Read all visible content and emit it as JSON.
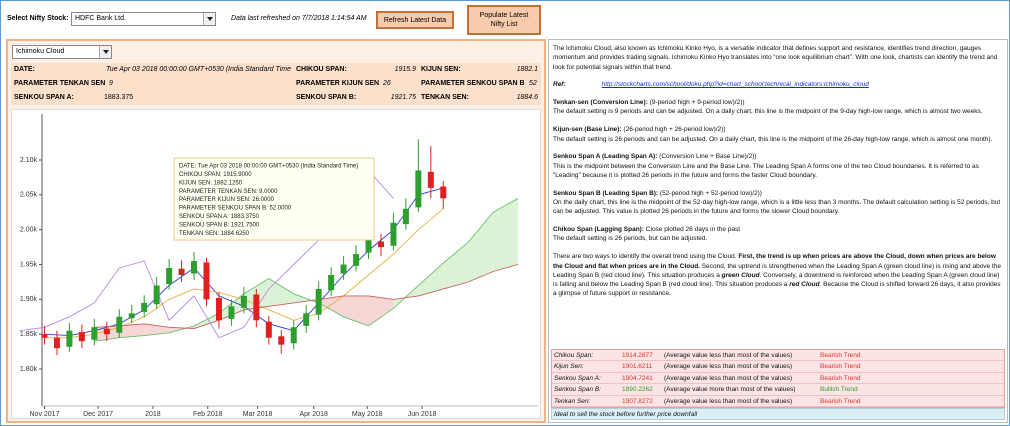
{
  "toolbar": {
    "stock_label": "Select Nifty Stock:",
    "stock": "HDFC Bank Ltd.",
    "refresh_note": "Data last refreshed on 7/7/2018 1:14:54 AM",
    "buttons": [
      "Refresh Latest Data",
      "Populate Latest Nifty List"
    ]
  },
  "indicator": "Ichimoku Cloud",
  "info": [
    [
      {
        "label": "DATE:",
        "value": "Tue Apr 03 2018 00:00:00 GMT+0530 (India Standard Time"
      },
      {
        "label": "CHIKOU SPAN:",
        "value": "1915.9"
      },
      {
        "label": "KIJUN SEN:",
        "value": "1882.1"
      }
    ],
    [
      {
        "label": "PARAMETER TENKAN SEN",
        "value": "9"
      },
      {
        "label": "PARAMETER KIJUN SEN",
        "value": "26"
      },
      {
        "label": "PARAMETER SENKOU SPAN B",
        "value": "52"
      }
    ],
    [
      {
        "label": "SENKOU SPAN A:",
        "value": "1883.375"
      },
      {
        "label": "SENKOU SPAN B:",
        "value": "1921.75"
      },
      {
        "label": "TENKAN SEN:",
        "value": "1884.6"
      }
    ]
  ],
  "chart_data": {
    "type": "candlestick",
    "x": [
      0,
      1,
      2,
      3,
      4,
      5,
      6,
      7,
      8,
      9,
      10,
      11,
      12,
      13,
      14,
      15,
      16,
      17,
      18,
      19,
      20,
      21,
      22,
      23,
      24,
      25,
      26,
      27,
      28,
      29,
      30,
      31,
      32
    ],
    "open": [
      1850,
      1845,
      1832,
      1853,
      1842,
      1858,
      1852,
      1873,
      1882,
      1893,
      1922,
      1944,
      1937,
      1953,
      1902,
      1872,
      1888,
      1907,
      1868,
      1847,
      1837,
      1862,
      1878,
      1913,
      1937,
      1948,
      1967,
      1983,
      1977,
      2008,
      2032,
      2083,
      2062
    ],
    "high": [
      1862,
      1855,
      1866,
      1864,
      1872,
      1868,
      1886,
      1892,
      1906,
      1932,
      1958,
      1956,
      1968,
      1960,
      1910,
      1900,
      1918,
      1915,
      1876,
      1856,
      1870,
      1892,
      1926,
      1946,
      1962,
      1978,
      1998,
      1994,
      2024,
      2045,
      2130,
      2120,
      2070
    ],
    "low": [
      1835,
      1820,
      1825,
      1830,
      1834,
      1840,
      1845,
      1866,
      1874,
      1886,
      1914,
      1925,
      1928,
      1890,
      1858,
      1862,
      1880,
      1860,
      1835,
      1822,
      1828,
      1852,
      1870,
      1905,
      1928,
      1940,
      1958,
      1962,
      1970,
      2000,
      2025,
      2045,
      2030
    ],
    "close": [
      1845,
      1830,
      1855,
      1840,
      1860,
      1850,
      1875,
      1880,
      1895,
      1920,
      1945,
      1935,
      1955,
      1900,
      1870,
      1890,
      1905,
      1870,
      1845,
      1835,
      1860,
      1880,
      1915,
      1935,
      1950,
      1965,
      1985,
      1975,
      2010,
      2030,
      2085,
      2060,
      2045
    ],
    "up_color": "#2e9e2e",
    "down_color": "#e02020",
    "series": [
      {
        "color": "#2a3fc8",
        "x": [
          0,
          2,
          4,
          6,
          8,
          10,
          12,
          14,
          16,
          18,
          20,
          22,
          24,
          26,
          28,
          30,
          32
        ],
        "values": [
          1850,
          1848,
          1855,
          1865,
          1885,
          1920,
          1945,
          1905,
          1890,
          1865,
          1855,
          1895,
          1935,
          1970,
          2000,
          2050,
          2060
        ]
      },
      {
        "color": "#e8b040",
        "x": [
          0,
          2,
          4,
          6,
          8,
          10,
          12,
          14,
          16,
          18,
          20,
          22,
          24,
          26,
          28,
          30,
          32
        ],
        "values": [
          1845,
          1845,
          1850,
          1860,
          1875,
          1900,
          1915,
          1910,
          1900,
          1885,
          1870,
          1880,
          1905,
          1935,
          1965,
          2000,
          2030
        ]
      },
      {
        "color": "#6cbf6c",
        "cloud": true,
        "x": [
          4,
          6,
          8,
          10,
          12,
          14,
          16,
          18,
          20,
          22,
          24,
          26,
          28,
          30,
          32,
          34,
          36,
          38
        ],
        "values": [
          1840,
          1845,
          1848,
          1852,
          1862,
          1880,
          1908,
          1930,
          1908,
          1895,
          1875,
          1862,
          1887,
          1920,
          1952,
          1982,
          2025,
          2045
        ]
      },
      {
        "color": "#c86060",
        "cloud": true,
        "x": [
          4,
          6,
          8,
          10,
          12,
          14,
          16,
          18,
          20,
          22,
          24,
          26,
          28,
          30,
          32,
          34,
          36,
          38
        ],
        "values": [
          1860,
          1862,
          1865,
          1860,
          1858,
          1870,
          1885,
          1890,
          1895,
          1900,
          1905,
          1905,
          1900,
          1905,
          1915,
          1925,
          1940,
          1950
        ]
      },
      {
        "color": "#b58be0",
        "x": [
          -2,
          0,
          2,
          4,
          6,
          8,
          10,
          12,
          14,
          16,
          18,
          20,
          22,
          24,
          26,
          28
        ],
        "values": [
          1855,
          1860,
          1875,
          1895,
          1945,
          1955,
          1870,
          1905,
          1845,
          1860,
          1915,
          1950,
          1985,
          2010,
          2085,
          2045
        ]
      }
    ],
    "cloud_colors": {
      "bullish": "#dcf2d6",
      "bearish": "#f7d6d6"
    },
    "xlim": [
      -0.2,
      39.6
    ],
    "ylim": [
      1747,
      2166
    ],
    "xticks": [
      {
        "value": 0,
        "label": "Nov 2017"
      },
      {
        "value": 4.3,
        "label": "Dec 2017"
      },
      {
        "value": 8.7,
        "label": "2018"
      },
      {
        "value": 13.1,
        "label": "Feb 2018"
      },
      {
        "value": 17.1,
        "label": "Mar 2018"
      },
      {
        "value": 21.6,
        "label": "Apr 2018"
      },
      {
        "value": 25.9,
        "label": "May 2018"
      },
      {
        "value": 30.3,
        "label": "Jun 2018"
      }
    ],
    "yticks": [
      {
        "value": 1800,
        "label": "1.80k"
      },
      {
        "value": 1850,
        "label": "1.85k"
      },
      {
        "value": 1900,
        "label": "1.90k"
      },
      {
        "value": 1950,
        "label": "1.95k"
      },
      {
        "value": 2000,
        "label": "2.00k"
      },
      {
        "value": 2050,
        "label": "2.05k"
      },
      {
        "value": 2100,
        "label": "2.10k"
      }
    ],
    "tooltip": [
      "DATE: Tue Apr 03 2018 00:00:00 GMT+0530 (India Standard Time)",
      "CHIKOU SPAN: 1915.9000",
      "KIJUN SEN: 1882.1250",
      "PARAMETER TENKAN SEN: 9.0000",
      "PARAMETER KIJUN SEN: 26.0000",
      "PARAMETER SENKOU SPAN B: 52.0000",
      "SENKOU SPAN A: 1883.3750",
      "SENKOU SPAN B: 1921.7500",
      "TENKAN SEN: 1884.6250"
    ]
  },
  "description": [
    [
      [
        {
          "t": "The Ichimoku Cloud, also known as Ichimoku Kinko Hyo, is a versatile indicator that defines support and resistance, identifies trend direction, gauges momentum and provides trading signals. Ichimoku Kinko Hyo translates into “one look equilibrium chart”. With one look, chartists can identify the trend and look for potential signals within that trend."
        }
      ]
    ],
    [
      [
        {
          "t": "Ref:",
          "b": true,
          "i": true
        },
        {
          "t": "http://stockcharts.com/school/doku.php?id=chart_school:technical_indicators:ichimoku_cloud",
          "link": true
        }
      ]
    ],
    [
      [
        {
          "t": "Tenkan-sen (Conversion Line):",
          "b": true
        },
        {
          "t": " (9-period high + 9-period low)/2))"
        }
      ],
      [
        {
          "t": "The default setting is 9 periods and can be adjusted. On a daily chart, this line is the midpoint of the 9-day high-low range, which is almost two weeks."
        }
      ]
    ],
    [
      [
        {
          "t": "Kijun-sen (Base Line):",
          "b": true
        },
        {
          "t": " (26-period high + 26-period low)/2))"
        }
      ],
      [
        {
          "t": "The default setting is 26 periods and can be adjusted. On a daily chart, this line is the midpoint of the 26-day high-low range, which is almost one month)."
        }
      ]
    ],
    [
      [
        {
          "t": "Senkou Span A (Leading Span A):",
          "b": true
        },
        {
          "t": " (Conversion Line + Base Line)/2))"
        }
      ],
      [
        {
          "t": "This is the midpoint between the Conversion Line and the Base Line. The Leading Span A forms one of the two Cloud boundaries. It is referred to as \"Leading\" because it is plotted 26 periods in the future and forms the faster Cloud boundary."
        }
      ]
    ],
    [
      [
        {
          "t": "Senkou Span B (Leading Span B):",
          "b": true
        },
        {
          "t": " (52-period high + 52-period low)/2))"
        }
      ],
      [
        {
          "t": "On the daily chart, this line is the midpoint of the 52-day high-low range, which is a little less than 3 months. The default calculation setting is 52 periods, but can be adjusted. This value is plotted 26 periods in the future and forms the slower Cloud boundary."
        }
      ]
    ],
    [
      [
        {
          "t": "Chikou Span (Lagging Span):",
          "b": true
        },
        {
          "t": " Close plotted 26 days in the past"
        }
      ],
      [
        {
          "t": "The default setting is 26 periods, but can be adjusted."
        }
      ]
    ],
    [
      [
        {
          "t": "There are two ways to identify the overall trend using the Cloud. "
        },
        {
          "t": "First, the trend is up when prices are above the Cloud, down when prices are below the Cloud and flat when prices are in the Cloud.",
          "b": true
        },
        {
          "t": " Second, the uptrend is strengthened when the Leading Span A (green cloud line) is rising and above the Leading Span B (red cloud line). This situation produces a "
        },
        {
          "t": "green Cloud",
          "b": true,
          "i": true
        },
        {
          "t": ". Conversely, a downtrend is reinforced when the Leading Span A (green cloud line) is falling and below the Leading Span B (red cloud line). This situation produces a "
        },
        {
          "t": "red Cloud",
          "b": true,
          "i": true
        },
        {
          "t": ". Because the Cloud is shifted forward 26 days, it also provides a glimpse of future support or resistance."
        }
      ]
    ]
  ],
  "signals": {
    "rows": [
      {
        "label": "Chikou Span:",
        "value": "1914.2877",
        "note": "(Average value less than most of the values)",
        "trend": "Bearish Trend",
        "trend_color": "#e03030"
      },
      {
        "label": "Kijun Sen:",
        "value": "1901.6211",
        "note": "(Average value less than most of the values)",
        "trend": "Bearish Trend",
        "trend_color": "#e03030"
      },
      {
        "label": "Senkou Span A:",
        "value": "1904.7241",
        "note": "(Average value less than most of the values)",
        "trend": "Bearish Trend",
        "trend_color": "#e03030"
      },
      {
        "label": "Senkou Span B:",
        "value": "1890.2262",
        "note": "(Average value more than most of the values)",
        "trend": "Bullish Trend",
        "trend_color": "#2e9e2e"
      },
      {
        "label": "Tenkan Sen:",
        "value": "1907.8272",
        "note": "(Average value less than most of the values)",
        "trend": "Bearish Trend",
        "trend_color": "#e03030"
      }
    ],
    "conclusion": "Ideal to sell the stock before further price downfall"
  }
}
